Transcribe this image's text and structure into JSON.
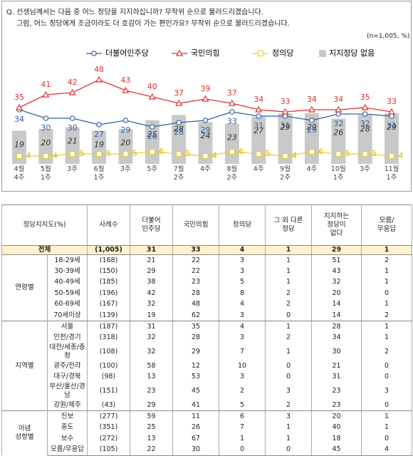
{
  "chart_data": {
    "type": "line",
    "title": "Q. 선생님께서는 다음 중 어느 정당을 지지하십니까? 무작위 순으로 불러드리겠습니다.",
    "subtitle": "그럼, 어느 정당에게 조금이라도 더 호감이 가는 편인가요? 무작위 순으로 불러드리겠습니다.",
    "note": "(n=1,005, %)",
    "categories": [
      "4월\n4주",
      "5월\n1주",
      "3주",
      "6월\n1주",
      "3주",
      "5주",
      "7월\n2주",
      "4주",
      "8월\n2주",
      "4주",
      "9월\n2주",
      "4주",
      "10월\n1주",
      "3주",
      "11월\n1주"
    ],
    "series": [
      {
        "name": "더불어민주당",
        "color": "#2f5fa7",
        "marker": "circle",
        "values": [
          34,
          30,
          30,
          27,
          29,
          26,
          28,
          29,
          33,
          31,
          31,
          29,
          32,
          32,
          31
        ]
      },
      {
        "name": "국민의힘",
        "color": "#e0312f",
        "marker": "triangle",
        "values": [
          35,
          41,
          42,
          48,
          43,
          40,
          37,
          39,
          37,
          34,
          33,
          34,
          34,
          35,
          33
        ]
      },
      {
        "name": "정의당",
        "color": "#e6cf2a",
        "marker": "square",
        "values": [
          4,
          4,
          5,
          5,
          5,
          6,
          5,
          4,
          6,
          5,
          4,
          6,
          5,
          5,
          4
        ]
      },
      {
        "name": "지지정당 없음",
        "type": "bar",
        "color": "#c9c9c9",
        "values": [
          19,
          20,
          21,
          19,
          20,
          25,
          28,
          24,
          23,
          27,
          29,
          29,
          26,
          28,
          29
        ]
      }
    ]
  },
  "table": {
    "header": [
      "정당지지도(%)",
      "사례수",
      "더불어\n민주당",
      "국민의힘",
      "정의당",
      "그 외 다른\n정당",
      "지지하는\n정당이\n없다",
      "모름/\n무응답"
    ],
    "total": {
      "label": "전체",
      "cells": [
        "(1,005)",
        31,
        33,
        4,
        1,
        29,
        1
      ]
    },
    "groups": [
      {
        "name": "연령별",
        "rows": [
          [
            "18-29세",
            "(168)",
            21,
            22,
            3,
            1,
            51,
            2
          ],
          [
            "30-39세",
            "(150)",
            29,
            22,
            3,
            1,
            43,
            1
          ],
          [
            "40-49세",
            "(185)",
            38,
            23,
            5,
            1,
            32,
            1
          ],
          [
            "50-59세",
            "(196)",
            42,
            28,
            8,
            2,
            20,
            0
          ],
          [
            "60-69세",
            "(167)",
            32,
            48,
            4,
            2,
            14,
            1
          ],
          [
            "70세이상",
            "(139)",
            19,
            62,
            3,
            0,
            14,
            2
          ]
        ]
      },
      {
        "name": "지역별",
        "rows": [
          [
            "서울",
            "(187)",
            31,
            35,
            4,
            1,
            28,
            1
          ],
          [
            "인천/경기",
            "(318)",
            32,
            28,
            3,
            2,
            34,
            1
          ],
          [
            "대전/세종/충청",
            "(108)",
            32,
            29,
            7,
            1,
            30,
            2
          ],
          [
            "광주/전라",
            "(100)",
            58,
            12,
            10,
            0,
            21,
            0
          ],
          [
            "대구/경북",
            "(98)",
            13,
            53,
            3,
            0,
            31,
            0
          ],
          [
            "부산/울산/경남",
            "(151)",
            23,
            45,
            2,
            3,
            23,
            3
          ],
          [
            "강원/제주",
            "(43)",
            29,
            41,
            5,
            2,
            23,
            0
          ]
        ]
      },
      {
        "name": "이념\n성향별",
        "rows": [
          [
            "진보",
            "(277)",
            59,
            11,
            6,
            3,
            20,
            1
          ],
          [
            "중도",
            "(351)",
            25,
            26,
            7,
            1,
            40,
            1
          ],
          [
            "보수",
            "(272)",
            13,
            67,
            1,
            1,
            18,
            0
          ],
          [
            "모름/무응답",
            "(105)",
            22,
            30,
            0,
            0,
            45,
            4
          ]
        ]
      }
    ]
  }
}
